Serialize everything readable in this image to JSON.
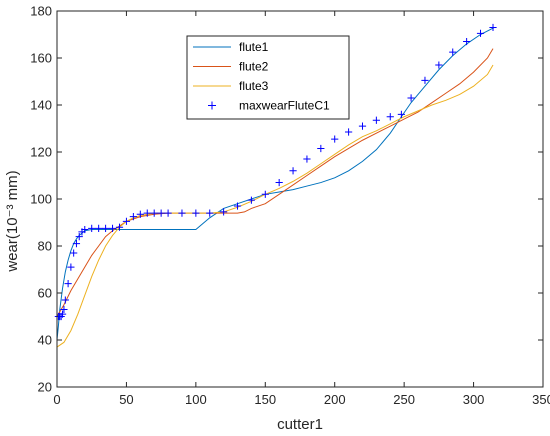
{
  "chart_data": {
    "type": "line",
    "title": "",
    "xlabel": "cutter1",
    "ylabel": "wear(10⁻³ mm)",
    "xlim": [
      0,
      350
    ],
    "ylim": [
      20,
      180
    ],
    "xticks": [
      0,
      50,
      100,
      150,
      200,
      250,
      300,
      350
    ],
    "yticks": [
      20,
      40,
      60,
      80,
      100,
      120,
      140,
      160,
      180
    ],
    "grid": false,
    "legend_position": "top-center",
    "series": [
      {
        "name": "flute1",
        "color": "#0072BD",
        "style": "line",
        "x": [
          0,
          1,
          2,
          4,
          6,
          8,
          10,
          12,
          14,
          16,
          18,
          20,
          25,
          30,
          40,
          60,
          80,
          100,
          110,
          120,
          130,
          140,
          150,
          160,
          170,
          180,
          190,
          200,
          210,
          220,
          230,
          240,
          248,
          255,
          265,
          275,
          285,
          295,
          305,
          315
        ],
        "y": [
          40,
          46,
          53,
          62,
          69,
          74,
          78,
          81,
          83,
          84.5,
          85.5,
          86.5,
          87,
          87,
          87,
          87,
          87,
          87,
          92,
          96,
          98,
          100,
          102,
          103,
          104,
          105.5,
          107,
          109,
          112,
          116,
          121,
          128,
          135,
          141,
          148,
          155,
          161,
          166,
          170,
          173
        ]
      },
      {
        "name": "flute2",
        "color": "#D95319",
        "style": "line",
        "x": [
          0,
          5,
          10,
          15,
          20,
          25,
          30,
          35,
          40,
          45,
          50,
          60,
          70,
          80,
          90,
          100,
          110,
          120,
          130,
          135,
          140,
          150,
          160,
          170,
          180,
          190,
          200,
          210,
          220,
          230,
          240,
          250,
          260,
          270,
          280,
          290,
          300,
          310,
          314
        ],
        "y": [
          50,
          55,
          61,
          66,
          71,
          76,
          80,
          84,
          86.5,
          88.5,
          90.5,
          92.5,
          93.5,
          94,
          94,
          94,
          94,
          94,
          94,
          94.5,
          96,
          98,
          102,
          106,
          110,
          114,
          118,
          121.5,
          125,
          128,
          131,
          134,
          137,
          141,
          145,
          149,
          154,
          160,
          164
        ]
      },
      {
        "name": "flute3",
        "color": "#EDB120",
        "style": "line",
        "x": [
          0,
          5,
          10,
          15,
          20,
          25,
          30,
          35,
          40,
          45,
          50,
          55,
          60,
          70,
          80,
          90,
          100,
          110,
          120,
          130,
          140,
          150,
          160,
          170,
          180,
          190,
          200,
          210,
          220,
          230,
          240,
          250,
          260,
          270,
          280,
          290,
          300,
          310,
          314
        ],
        "y": [
          37,
          39,
          44,
          51,
          59,
          67,
          74,
          80,
          84.5,
          88,
          90.5,
          92,
          93,
          94,
          94,
          94,
          94,
          94,
          94.5,
          96.5,
          99,
          102,
          104.5,
          107.5,
          111,
          115,
          119,
          123,
          126.5,
          129,
          132,
          135,
          137.5,
          140,
          142,
          144.5,
          148,
          153,
          157
        ]
      },
      {
        "name": "maxwearFluteC1",
        "color": "#0000FF",
        "style": "marker-plus",
        "x": [
          1,
          2,
          3,
          4,
          5,
          6,
          8,
          10,
          12,
          14,
          16,
          18,
          20,
          25,
          30,
          35,
          40,
          45,
          50,
          55,
          60,
          65,
          70,
          75,
          80,
          90,
          100,
          110,
          120,
          130,
          140,
          150,
          160,
          170,
          180,
          190,
          200,
          210,
          220,
          230,
          240,
          248,
          255,
          265,
          275,
          285,
          295,
          305,
          314
        ],
        "y": [
          50,
          50,
          50,
          51,
          53,
          57,
          64,
          71,
          77,
          81,
          84,
          86,
          87,
          87.5,
          87.5,
          87.5,
          87.5,
          88,
          90.5,
          92.5,
          93.5,
          94,
          94,
          94,
          94,
          94,
          94,
          94,
          94.5,
          97,
          99.5,
          102,
          107,
          112,
          117,
          121.5,
          125.5,
          128.5,
          131,
          133.5,
          135,
          136,
          143,
          150.5,
          157,
          162.5,
          167,
          170.5,
          173
        ]
      }
    ]
  }
}
